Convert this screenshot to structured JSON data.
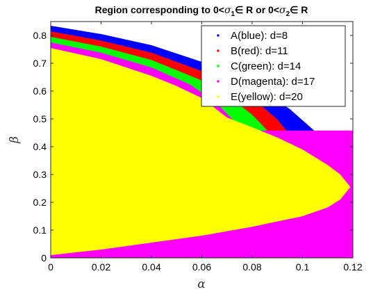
{
  "chart_data": {
    "type": "area",
    "title": {
      "prefix": "Region corresponding to 0<",
      "sym1": "σ",
      "sub1": "1",
      "mid": "∈ R or 0<",
      "sym2": "σ",
      "sub2": "2",
      "suffix": "∈ R"
    },
    "xlabel": "α",
    "ylabel": "β",
    "xlim": [
      0,
      0.12
    ],
    "ylim": [
      0,
      0.85
    ],
    "xticks": [
      0,
      0.02,
      0.04,
      0.06,
      0.08,
      0.1,
      0.12
    ],
    "xtick_labels": [
      "0",
      "0.02",
      "0.04",
      "0.06",
      "0.08",
      "0.1",
      "0.12"
    ],
    "yticks": [
      0,
      0.1,
      0.2,
      0.3,
      0.4,
      0.5,
      0.6,
      0.7,
      0.8
    ],
    "ytick_labels": [
      "0",
      "0.1",
      "0.2",
      "0.3",
      "0.4",
      "0.5",
      "0.6",
      "0.7",
      "0.8"
    ],
    "grid": false,
    "legend_position": "top-right",
    "series": [
      {
        "name": "A(blue): d=8",
        "color": "#0000ff",
        "upper": [
          [
            0,
            0.835
          ],
          [
            0.02,
            0.805
          ],
          [
            0.04,
            0.765
          ],
          [
            0.06,
            0.705
          ],
          [
            0.08,
            0.625
          ],
          [
            0.095,
            0.535
          ],
          [
            0.105,
            0.455
          ],
          [
            0.11,
            0.395
          ],
          [
            0.1125,
            0.345
          ],
          [
            0.113,
            0.315
          ]
        ]
      },
      {
        "name": "B(red): d=11",
        "color": "#ff0000",
        "upper": [
          [
            0,
            0.815
          ],
          [
            0.02,
            0.782
          ],
          [
            0.04,
            0.738
          ],
          [
            0.06,
            0.672
          ],
          [
            0.08,
            0.575
          ],
          [
            0.09,
            0.498
          ],
          [
            0.097,
            0.42
          ],
          [
            0.1,
            0.378
          ]
        ]
      },
      {
        "name": "C(green): d=14",
        "color": "#00ff00",
        "upper": [
          [
            0,
            0.795
          ],
          [
            0.02,
            0.76
          ],
          [
            0.04,
            0.712
          ],
          [
            0.06,
            0.638
          ],
          [
            0.07,
            0.585
          ],
          [
            0.08,
            0.515
          ],
          [
            0.088,
            0.44
          ],
          [
            0.091,
            0.405
          ]
        ]
      },
      {
        "name": "D(magenta): d=17",
        "color": "#ff00ff",
        "upper": [
          [
            0,
            0.775
          ],
          [
            0.02,
            0.738
          ],
          [
            0.04,
            0.685
          ],
          [
            0.055,
            0.625
          ],
          [
            0.065,
            0.565
          ],
          [
            0.072,
            0.5
          ],
          [
            0.075,
            0.458
          ]
        ]
      },
      {
        "name": "E(yellow): d=20",
        "color": "#ffff00",
        "upper": [
          [
            0,
            0.755
          ],
          [
            0.02,
            0.715
          ],
          [
            0.04,
            0.655
          ],
          [
            0.05,
            0.618
          ],
          [
            0.06,
            0.575
          ],
          [
            0.07,
            0.505
          ],
          [
            0.08,
            0.47
          ],
          [
            0.09,
            0.433
          ],
          [
            0.1,
            0.39
          ],
          [
            0.11,
            0.334
          ],
          [
            0.115,
            0.3
          ],
          [
            0.119,
            0.255
          ]
        ],
        "lower": [
          [
            0.119,
            0.255
          ],
          [
            0.115,
            0.21
          ],
          [
            0.11,
            0.182
          ],
          [
            0.1,
            0.15
          ],
          [
            0.08,
            0.112
          ],
          [
            0.06,
            0.08
          ],
          [
            0.04,
            0.055
          ],
          [
            0.02,
            0.03
          ],
          [
            0.005,
            0.015
          ],
          [
            0,
            0.01
          ]
        ]
      }
    ]
  }
}
